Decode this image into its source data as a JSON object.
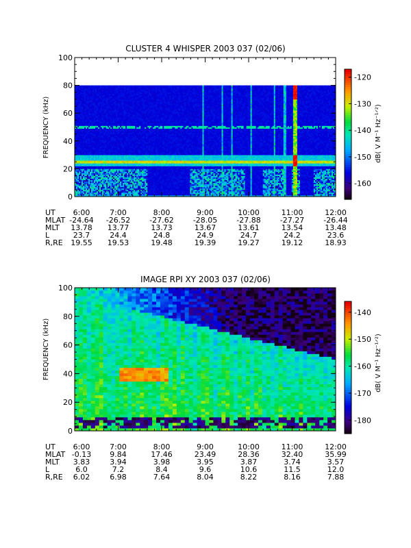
{
  "panels": [
    {
      "title": "CLUSTER 4 WHISPER 2003 037 (02/06)",
      "ylabel": "FREQUENCY (kHz)",
      "colorbar_label": "dB( V M⁻¹ Hz⁻¹ᐟ²)",
      "ephemeris_labels": [
        "UT",
        "MLAT",
        "MLT",
        "L",
        "R,RE"
      ],
      "ephemeris_rows": [
        [
          "6:00",
          "7:00",
          "8:00",
          "9:00",
          "10:00",
          "11:00",
          "12:00"
        ],
        [
          "-24.64",
          "-26.52",
          "-27.62",
          "-28.05",
          "-27.88",
          "-27.27",
          "-26.44"
        ],
        [
          "13.78",
          "13.77",
          "13.73",
          "13.67",
          "13.61",
          "13.54",
          "13.48"
        ],
        [
          "23.7",
          "24.4",
          "24.8",
          "24.9",
          "24.7",
          "24.2",
          "23.6"
        ],
        [
          "19.55",
          "19.53",
          "19.48",
          "19.39",
          "19.27",
          "19.12",
          "18.93"
        ]
      ]
    },
    {
      "title": "IMAGE RPI XY 2003 037 (02/06)",
      "ylabel": "FREQUENCY (kHz)",
      "colorbar_label": "dB( V M⁻¹ Hz⁻¹ᐟ²)",
      "ephemeris_labels": [
        "UT",
        "MLAT",
        "MLT",
        "L",
        "R,RE"
      ],
      "ephemeris_rows": [
        [
          "6:00",
          "7:00",
          "8:00",
          "9:00",
          "10:00",
          "11:00",
          "12:00"
        ],
        [
          "-0.13",
          "9.84",
          "17.46",
          "23.49",
          "28.36",
          "32.40",
          "35.99"
        ],
        [
          "3.83",
          "3.94",
          "3.98",
          "3.95",
          "3.87",
          "3.74",
          "3.57"
        ],
        [
          "6.0",
          "7.2",
          "8.4",
          "9.6",
          "10.6",
          "11.5",
          "12.0"
        ],
        [
          "6.02",
          "6.98",
          "7.64",
          "8.04",
          "8.22",
          "8.16",
          "7.88"
        ]
      ]
    }
  ],
  "chart_data": [
    {
      "type": "heatmap",
      "title": "CLUSTER 4 WHISPER 2003 037 (02/06)",
      "ylabel": "FREQUENCY (kHz)",
      "x_ticks": [
        "6:00",
        "7:00",
        "8:00",
        "9:00",
        "10:00",
        "11:00",
        "12:00"
      ],
      "y_ticks": [
        0,
        20,
        40,
        60,
        80,
        100
      ],
      "ylim": [
        0,
        100
      ],
      "data_freq_max": 80,
      "colorbar_ticks": [
        -120,
        -130,
        -140,
        -150,
        -160
      ],
      "colorbar_range": [
        -166,
        -117
      ],
      "features": {
        "background_db": -157,
        "main_band_khz": [
          22,
          30
        ],
        "main_band_db": -147,
        "band_center_line_khz": 25,
        "band_center_line_db": -133,
        "emission_band_khz": 50,
        "emission_band_db": -142,
        "noise_below_khz": 20,
        "noise_intervals_ut": [
          [
            "6:00",
            "7:40"
          ],
          [
            "8:40",
            "9:55"
          ],
          [
            "10:20",
            "10:50"
          ],
          [
            "11:00",
            "11:10"
          ],
          [
            "11:30",
            "12:00"
          ]
        ],
        "vertical_spikes_ut": [
          "8:57",
          "9:23",
          "9:37",
          "10:03",
          "10:35",
          "10:50",
          "11:02",
          "11:06"
        ],
        "strong_spike_ut": "11:04"
      }
    },
    {
      "type": "heatmap",
      "title": "IMAGE RPI XY 2003 037 (02/06)",
      "ylabel": "FREQUENCY (kHz)",
      "x_ticks": [
        "6:00",
        "7:00",
        "8:00",
        "9:00",
        "10:00",
        "11:00",
        "12:00"
      ],
      "y_ticks": [
        0,
        20,
        40,
        60,
        80,
        100
      ],
      "ylim": [
        0,
        100
      ],
      "colorbar_ticks": [
        -140,
        -150,
        -160,
        -170,
        -180
      ],
      "colorbar_range": [
        -185,
        -136
      ],
      "features": {
        "low_freq_db": -155,
        "high_freq_early_db": -160,
        "high_freq_late_db": -183,
        "peak_region_khz": [
          35,
          45
        ],
        "peak_region_ut": [
          "7:00",
          "8:10"
        ],
        "peak_region_db": -147,
        "bottom_dark_band_khz": [
          2,
          10
        ],
        "bottom_dark_db": -184
      }
    }
  ]
}
